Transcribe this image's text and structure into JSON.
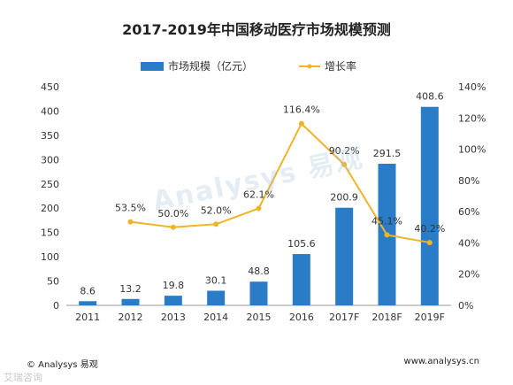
{
  "chart_data": {
    "type": "bar",
    "title": "2017-2019年中国移动医疗市场规模预测",
    "categories": [
      "2011",
      "2012",
      "2013",
      "2014",
      "2015",
      "2016",
      "2017F",
      "2018F",
      "2019F"
    ],
    "series": [
      {
        "name": "市场规模（亿元）",
        "type": "bar",
        "axis": "left",
        "values": [
          8.6,
          13.2,
          19.8,
          30.1,
          48.8,
          105.6,
          200.9,
          291.5,
          408.6
        ],
        "labels": [
          "8.6",
          "13.2",
          "19.8",
          "30.1",
          "48.8",
          "105.6",
          "200.9",
          "291.5",
          "408.6"
        ]
      },
      {
        "name": "增长率",
        "type": "line",
        "axis": "right",
        "values": [
          null,
          53.5,
          50.0,
          52.0,
          62.1,
          116.4,
          90.2,
          45.1,
          40.2
        ],
        "labels": [
          "",
          "53.5%",
          "50.0%",
          "52.0%",
          "62.1%",
          "116.4%",
          "90.2%",
          "45.1%",
          "40.2%"
        ]
      }
    ],
    "y_left": {
      "ylim": [
        0,
        450
      ],
      "ticks": [
        0,
        50,
        100,
        150,
        200,
        250,
        300,
        350,
        400,
        450
      ]
    },
    "y_right": {
      "ylim": [
        0,
        140
      ],
      "ticks": [
        "0%",
        "20%",
        "40%",
        "60%",
        "80%",
        "100%",
        "120%",
        "140%"
      ]
    },
    "colors": {
      "bar": "#2b7cc7",
      "line": "#f0b429"
    },
    "legend_position": "top"
  },
  "footer": {
    "source": "© Analysys 易观",
    "url": "www.analysys.cn"
  },
  "watermark": {
    "center": "Analysys 易观",
    "corner": "艾瑞咨询"
  }
}
